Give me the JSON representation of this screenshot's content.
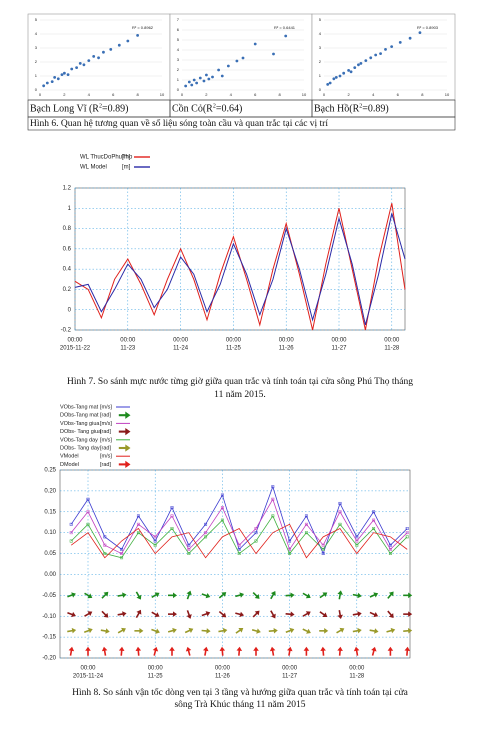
{
  "figure6": {
    "caption": "Hình 6. Quan hệ tương quan về số liệu sóng toàn cầu và quan trắc tại các vị trí",
    "panels": [
      {
        "label_parts": [
          "Bạch Long Vĩ (R",
          "2",
          "=0.89)"
        ],
        "annotation": "R² = 0.8962",
        "xlim": [
          0,
          10
        ],
        "ylim": [
          0,
          5
        ],
        "xticks": [
          0,
          2,
          4,
          6,
          8,
          10
        ],
        "yticks": [
          0,
          1,
          2,
          3,
          4,
          5
        ],
        "color": "#3a6fb5",
        "x": [
          0.3,
          0.6,
          1,
          1.2,
          1.5,
          1.8,
          2,
          2.3,
          2.6,
          3,
          3.3,
          3.6,
          4,
          4.4,
          4.8,
          5.2,
          5.8,
          6.5,
          7.2,
          8
        ],
        "y": [
          0.3,
          0.5,
          0.6,
          0.9,
          0.8,
          1.1,
          1.2,
          1.1,
          1.5,
          1.6,
          1.9,
          1.8,
          2.1,
          2.4,
          2.3,
          2.7,
          2.9,
          3.2,
          3.5,
          3.9
        ]
      },
      {
        "label_parts": [
          "Cồn Cỏ(R",
          "2",
          "=0.64)"
        ],
        "annotation": "R² = 0.6441",
        "xlim": [
          0,
          10
        ],
        "ylim": [
          0,
          7
        ],
        "xticks": [
          0,
          2,
          4,
          6,
          8,
          10
        ],
        "yticks": [
          0,
          1,
          2,
          3,
          4,
          5,
          6,
          7
        ],
        "color": "#3a6fb5",
        "x": [
          0.3,
          0.6,
          0.8,
          1,
          1.2,
          1.5,
          1.8,
          2,
          2.2,
          2.5,
          3,
          3.3,
          3.8,
          4.5,
          5,
          6,
          7.5,
          8.5
        ],
        "y": [
          0.4,
          0.8,
          0.5,
          1,
          0.7,
          1.2,
          0.9,
          1.5,
          1.1,
          1.3,
          2,
          1.4,
          2.4,
          2.9,
          3.2,
          4.6,
          3.6,
          5.4
        ]
      },
      {
        "label_parts": [
          "Bạch Hồ(R",
          "2",
          "=0.89)"
        ],
        "annotation": "R² = 0.8903",
        "xlim": [
          0,
          10
        ],
        "ylim": [
          0,
          5
        ],
        "xticks": [
          0,
          2,
          4,
          6,
          8,
          10
        ],
        "yticks": [
          0,
          1,
          2,
          3,
          4,
          5
        ],
        "color": "#3a6fb5",
        "x": [
          0.3,
          0.5,
          0.8,
          1,
          1.3,
          1.6,
          2,
          2.2,
          2.5,
          2.8,
          3,
          3.4,
          3.8,
          4.2,
          4.6,
          5,
          5.5,
          6.2,
          7,
          7.8
        ],
        "y": [
          0.4,
          0.5,
          0.8,
          0.9,
          1,
          1.2,
          1.4,
          1.3,
          1.6,
          1.8,
          1.9,
          2.1,
          2.3,
          2.5,
          2.6,
          2.9,
          3.1,
          3.4,
          3.7,
          4.1
        ]
      }
    ]
  },
  "figure7": {
    "caption_lines": [
      "Hình 7. So sánh mực nước từng giờ giữa quan trắc và tính toán tại cửa sông Phú Thọ tháng",
      "11 năm 2015."
    ],
    "xlim": [
      0,
      150
    ],
    "ylim": [
      -0.2,
      1.2
    ],
    "yticks": [
      -0.2,
      0,
      0.2,
      0.4,
      0.6,
      0.8,
      1,
      1.2
    ],
    "xticks": [
      {
        "value": 0,
        "label": "00:00"
      },
      {
        "value": 24,
        "label": "00:00"
      },
      {
        "value": 48,
        "label": "00:00"
      },
      {
        "value": 72,
        "label": "00:00"
      },
      {
        "value": 96,
        "label": "00:00"
      },
      {
        "value": 120,
        "label": "00:00"
      },
      {
        "value": 144,
        "label": "00:00"
      }
    ],
    "xtick_dates": [
      "2015-11-22",
      "11-23",
      "11-24",
      "11-25",
      "11-26",
      "11-27",
      "11-28"
    ],
    "x": [
      0,
      6,
      12,
      18,
      24,
      30,
      36,
      42,
      48,
      54,
      60,
      66,
      72,
      78,
      84,
      90,
      96,
      102,
      108,
      114,
      120,
      126,
      132,
      138,
      144,
      150
    ],
    "series": [
      {
        "name": "WL ThucDoPhuTho",
        "unit": "[m]",
        "color": "#e0201b",
        "values": [
          0.28,
          0.2,
          -0.08,
          0.3,
          0.5,
          0.25,
          -0.05,
          0.3,
          0.6,
          0.3,
          -0.1,
          0.35,
          0.72,
          0.3,
          -0.15,
          0.4,
          0.85,
          0.35,
          -0.2,
          0.45,
          1.0,
          0.4,
          -0.2,
          0.5,
          1.05,
          0.2
        ]
      },
      {
        "name": "WL Model",
        "unit": "[m]",
        "color": "#2a2aa8",
        "values": [
          0.22,
          0.25,
          -0.02,
          0.2,
          0.45,
          0.3,
          0.02,
          0.2,
          0.52,
          0.35,
          -0.02,
          0.25,
          0.65,
          0.35,
          -0.05,
          0.3,
          0.8,
          0.4,
          -0.1,
          0.35,
          0.9,
          0.45,
          -0.15,
          0.35,
          0.95,
          0.5
        ]
      }
    ]
  },
  "figure8": {
    "caption_lines": [
      "Hình  8. So sánh vận tốc dòng ven tại 3 tầng và hướng giữa quan trắc và tính toán tại cửa",
      "sông Trà Khúc tháng 11 năm 2015"
    ],
    "xlim": [
      -10,
      115
    ],
    "ylim": [
      -0.2,
      0.25
    ],
    "yticks": [
      -0.2,
      -0.15,
      -0.1,
      -0.05,
      0,
      0.05,
      0.1,
      0.15,
      0.2,
      0.25
    ],
    "ytick_labels": [
      "-0.20",
      "-0.15",
      "-0.10",
      "-0.05",
      "0.00",
      "0.05",
      "0.10",
      "0.15",
      "0.20",
      "0.25"
    ],
    "xticks": [
      {
        "value": 0,
        "label": "00:00"
      },
      {
        "value": 24,
        "label": "00:00"
      },
      {
        "value": 48,
        "label": "00:00"
      },
      {
        "value": 72,
        "label": "00:00"
      },
      {
        "value": 96,
        "label": "00:00"
      }
    ],
    "xtick_dates": [
      "2015-11-24",
      "11-25",
      "11-26",
      "11-27",
      "11-28"
    ],
    "x": [
      -6,
      0,
      6,
      12,
      18,
      24,
      30,
      36,
      42,
      48,
      54,
      60,
      66,
      72,
      78,
      84,
      90,
      96,
      102,
      108,
      114
    ],
    "speed_series": [
      {
        "name": "VObs-Tang mat",
        "unit": "[m/s]",
        "color": "#3b3bd0",
        "values": [
          0.12,
          0.18,
          0.09,
          0.06,
          0.14,
          0.08,
          0.16,
          0.07,
          0.12,
          0.19,
          0.06,
          0.1,
          0.21,
          0.08,
          0.14,
          0.05,
          0.17,
          0.09,
          0.15,
          0.07,
          0.11
        ]
      },
      {
        "name": "VObs-Tang giua",
        "unit": "[m/s]",
        "color": "#c040c0",
        "values": [
          0.1,
          0.15,
          0.07,
          0.05,
          0.12,
          0.09,
          0.14,
          0.06,
          0.1,
          0.16,
          0.07,
          0.11,
          0.18,
          0.06,
          0.12,
          0.07,
          0.15,
          0.08,
          0.13,
          0.06,
          0.1
        ]
      },
      {
        "name": "VObs-Tang day",
        "unit": "[m/s]",
        "color": "#40b040",
        "values": [
          0.08,
          0.12,
          0.05,
          0.04,
          0.1,
          0.07,
          0.11,
          0.05,
          0.09,
          0.13,
          0.05,
          0.08,
          0.14,
          0.05,
          0.1,
          0.06,
          0.12,
          0.07,
          0.11,
          0.05,
          0.09
        ]
      },
      {
        "name": "VModel",
        "unit": "[m/s]",
        "color": "#e0201b",
        "values": [
          0.07,
          0.1,
          0.04,
          0.08,
          0.11,
          0.05,
          0.09,
          0.1,
          0.04,
          0.09,
          0.11,
          0.05,
          0.1,
          0.12,
          0.04,
          0.09,
          0.11,
          0.05,
          0.1,
          0.09,
          0.06
        ]
      }
    ],
    "direction_series": [
      {
        "name": "DObs-Tang mat",
        "unit": "[rad]",
        "color": "#1e8a1e",
        "row": -0.05,
        "angles": [
          20,
          -30,
          45,
          10,
          -60,
          30,
          0,
          70,
          -20,
          40,
          15,
          -45,
          60,
          5,
          -30,
          35,
          80,
          -10,
          25,
          50,
          0
        ]
      },
      {
        "name": "DObs- Tang giua",
        "unit": "[rad]",
        "color": "#8b1a1a",
        "row": -0.095,
        "angles": [
          -20,
          30,
          -45,
          10,
          60,
          -30,
          0,
          -70,
          20,
          -40,
          -15,
          45,
          -60,
          -5,
          30,
          -35,
          -80,
          10,
          -25,
          -50,
          0
        ]
      },
      {
        "name": "DObs- Tang day",
        "unit": "[rad]",
        "color": "#9a9a2a",
        "row": -0.135,
        "angles": [
          10,
          20,
          -10,
          30,
          0,
          -20,
          15,
          25,
          -5,
          10,
          35,
          -15,
          5,
          20,
          -25,
          0,
          30,
          10,
          -10,
          15,
          5
        ]
      },
      {
        "name": "DModel",
        "unit": "[rad]",
        "color": "#e0201b",
        "row": -0.185,
        "angles": [
          80,
          90,
          100,
          85,
          95,
          75,
          90,
          105,
          80,
          95,
          85,
          90,
          100,
          80,
          90,
          95,
          85,
          100,
          75,
          90,
          85
        ]
      }
    ]
  }
}
